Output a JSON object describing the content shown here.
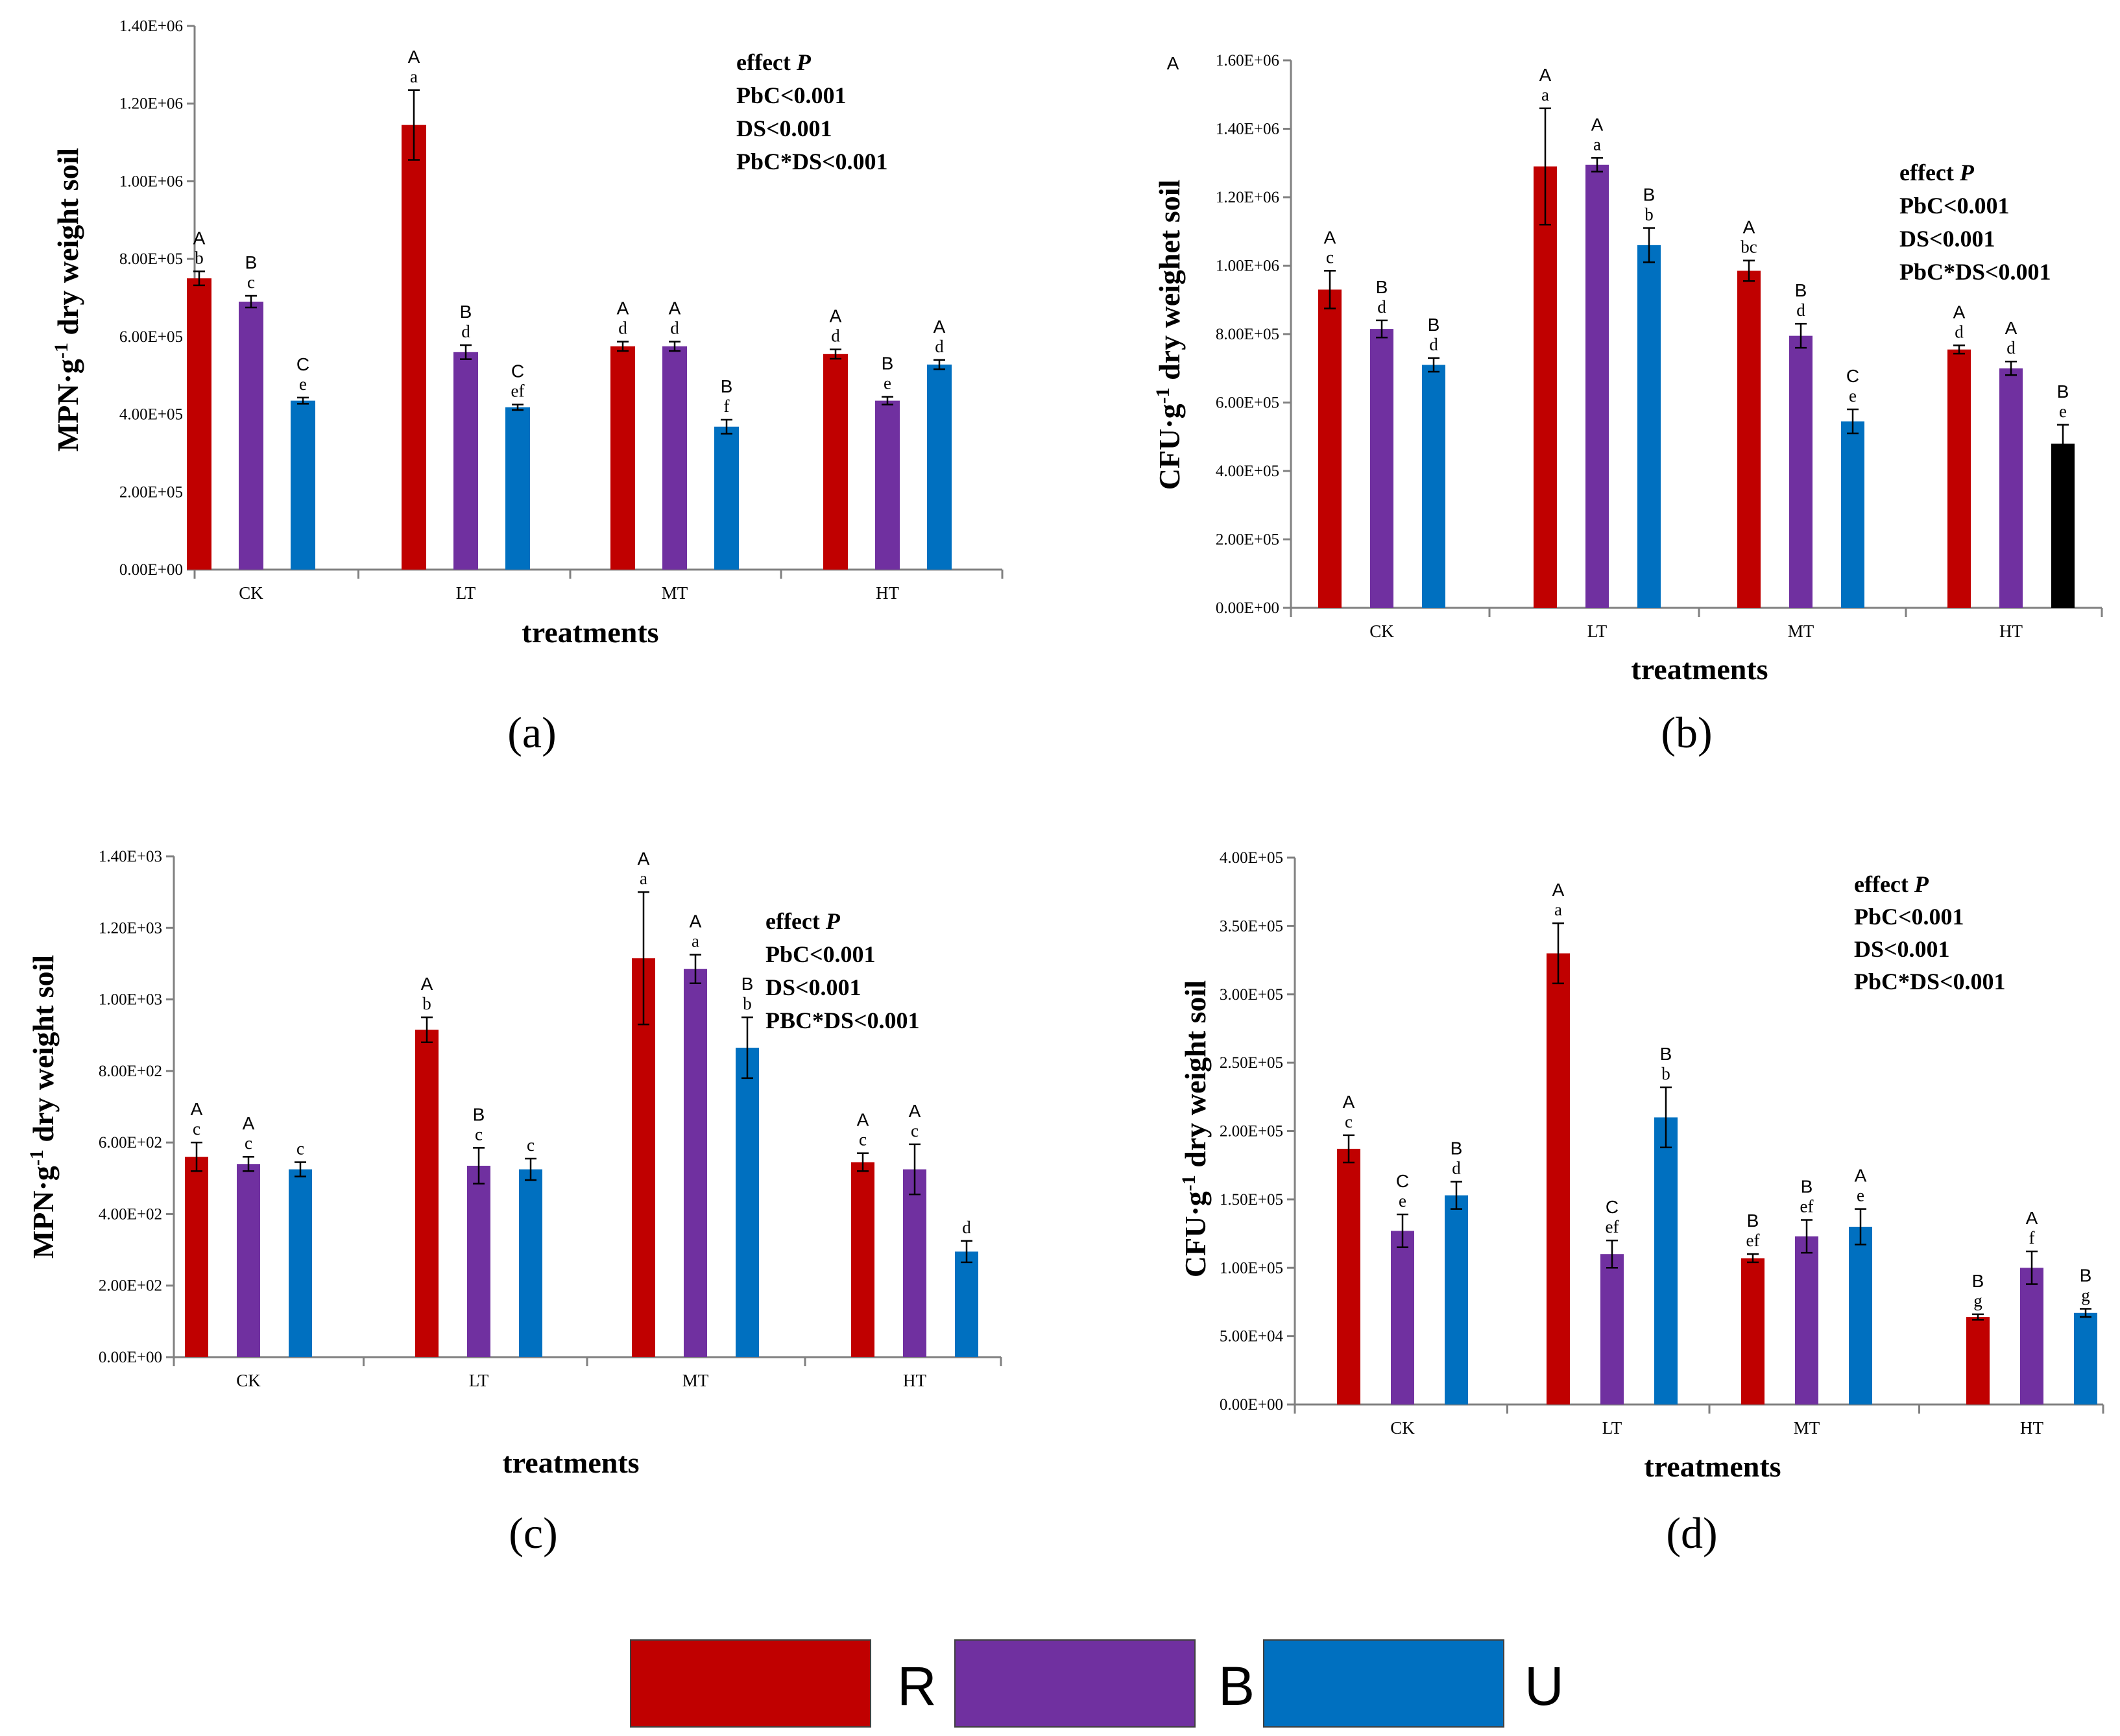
{
  "colors": {
    "R": "#C00000",
    "B": "#7030A0",
    "U": "#0070C0",
    "black": "#000000"
  },
  "legend": [
    {
      "label": "R",
      "color": "#C00000"
    },
    {
      "label": "B",
      "color": "#7030A0"
    },
    {
      "label": "U",
      "color": "#0070C0"
    }
  ],
  "chart_data": [
    {
      "panel": "(a)",
      "type": "bar",
      "xlabel": "treatments",
      "ylabel": "MPN·g-1 dry weight soil",
      "ylabel_main": "MPN·g",
      "ylabel_sup": "-1",
      "ylabel_rest": " dry weight soil",
      "ylim": [
        0,
        1400000
      ],
      "yticks": [
        "0.00E+00",
        "2.00E+05",
        "4.00E+05",
        "6.00E+05",
        "8.00E+05",
        "1.00E+06",
        "1.20E+06",
        "1.40E+06"
      ],
      "categories": [
        "CK",
        "LT",
        "MT",
        "HT"
      ],
      "series": [
        {
          "name": "R",
          "values": [
            750000,
            1145000,
            575000,
            555000
          ],
          "errors": [
            18000,
            90000,
            12000,
            12000
          ],
          "upper": [
            "A",
            "A",
            "A",
            "A"
          ],
          "lower": [
            "b",
            "a",
            "d",
            "d"
          ]
        },
        {
          "name": "B",
          "values": [
            690000,
            560000,
            575000,
            435000
          ],
          "errors": [
            15000,
            18000,
            12000,
            10000
          ],
          "upper": [
            "B",
            "B",
            "A",
            "B"
          ],
          "lower": [
            "c",
            "d",
            "d",
            "e"
          ]
        },
        {
          "name": "U",
          "values": [
            435000,
            418000,
            368000,
            528000
          ],
          "errors": [
            8000,
            7000,
            18000,
            12000
          ],
          "upper": [
            "C",
            "C",
            "B",
            "A"
          ],
          "lower": [
            "e",
            "ef",
            "f",
            "d"
          ]
        }
      ],
      "annotation": {
        "title": "effect ",
        "title_italic": "P",
        "lines": [
          "PbC<0.001",
          "DS<0.001",
          "PbC*DS<0.001"
        ]
      },
      "panel_letter": ""
    },
    {
      "panel": "(b)",
      "type": "bar",
      "xlabel": "treatments",
      "ylabel": "CFU·g-1 dry weighet soil",
      "ylabel_main": "CFU·g",
      "ylabel_sup": "-1",
      "ylabel_rest": " dry weighet soil",
      "ylim": [
        0,
        1600000
      ],
      "yticks": [
        "0.00E+00",
        "2.00E+05",
        "4.00E+05",
        "6.00E+05",
        "8.00E+05",
        "1.00E+06",
        "1.20E+06",
        "1.40E+06",
        "1.60E+06"
      ],
      "categories": [
        "CK",
        "LT",
        "MT",
        "HT"
      ],
      "series": [
        {
          "name": "R",
          "values": [
            930000,
            1290000,
            985000,
            755000
          ],
          "errors": [
            55000,
            170000,
            30000,
            12000
          ],
          "upper": [
            "A",
            "A",
            "A",
            "A"
          ],
          "lower": [
            "c",
            "a",
            "bc",
            "d"
          ]
        },
        {
          "name": "B",
          "values": [
            815000,
            1295000,
            795000,
            700000
          ],
          "errors": [
            25000,
            20000,
            35000,
            20000
          ],
          "upper": [
            "B",
            "A",
            "B",
            "A"
          ],
          "lower": [
            "d",
            "a",
            "d",
            "d"
          ]
        },
        {
          "name": "U",
          "values": [
            710000,
            1060000,
            545000,
            480000
          ],
          "errors": [
            20000,
            50000,
            35000,
            55000
          ],
          "upper": [
            "B",
            "B",
            "C",
            "B"
          ],
          "lower": [
            "d",
            "b",
            "e",
            "e"
          ]
        }
      ],
      "annotation": {
        "title": "effect  ",
        "title_italic": "P",
        "lines": [
          "PbC<0.001",
          "DS<0.001",
          "PbC*DS<0.001"
        ]
      },
      "panel_letter": "A"
    },
    {
      "panel": "(c)",
      "type": "bar",
      "xlabel": "treatments",
      "ylabel": "MPN·g-1 dry weight soil",
      "ylabel_main": "MPN·g",
      "ylabel_sup": "-1",
      "ylabel_rest": " dry weight soil",
      "ylim": [
        0,
        1400
      ],
      "yticks": [
        "0.00E+00",
        "2.00E+02",
        "4.00E+02",
        "6.00E+02",
        "8.00E+02",
        "1.00E+03",
        "1.20E+03",
        "1.40E+03"
      ],
      "categories": [
        "CK",
        "LT",
        "MT",
        "HT"
      ],
      "series": [
        {
          "name": "R",
          "values": [
            560,
            915,
            1115,
            545
          ],
          "errors": [
            40,
            35,
            185,
            25
          ],
          "upper": [
            "A",
            "A",
            "A",
            "A"
          ],
          "lower": [
            "c",
            "b",
            "a",
            "c"
          ]
        },
        {
          "name": "B",
          "values": [
            540,
            535,
            1085,
            525
          ],
          "errors": [
            20,
            50,
            40,
            70
          ],
          "upper": [
            "A",
            "B",
            "A",
            "A"
          ],
          "lower": [
            "c",
            "c",
            "a",
            "c"
          ]
        },
        {
          "name": "U",
          "values": [
            525,
            525,
            865,
            295
          ],
          "errors": [
            20,
            30,
            85,
            30
          ],
          "upper": [
            "",
            "",
            "B",
            ""
          ],
          "lower": [
            "c",
            "c",
            "b",
            "d"
          ]
        }
      ],
      "annotation": {
        "title": "effect ",
        "title_italic": "P",
        "lines": [
          "PbC<0.001",
          "DS<0.001",
          "PBC*DS<0.001"
        ]
      },
      "panel_letter": ""
    },
    {
      "panel": "(d)",
      "type": "bar",
      "xlabel": "treatments",
      "ylabel": "CFU·g-1 dry weight soil",
      "ylabel_main": "CFU·g",
      "ylabel_sup": "-1",
      "ylabel_rest": " dry weight soil",
      "ylim": [
        0,
        400000
      ],
      "yticks": [
        "0.00E+00",
        "5.00E+04",
        "1.00E+05",
        "1.50E+05",
        "2.00E+05",
        "2.50E+05",
        "3.00E+05",
        "3.50E+05",
        "4.00E+05"
      ],
      "categories": [
        "CK",
        "LT",
        "MT",
        "HT"
      ],
      "series": [
        {
          "name": "R",
          "values": [
            187000,
            330000,
            107000,
            64000
          ],
          "errors": [
            10000,
            22000,
            3000,
            2000
          ],
          "upper": [
            "A",
            "A",
            "B",
            "B"
          ],
          "lower": [
            "c",
            "a",
            "ef",
            "g"
          ]
        },
        {
          "name": "B",
          "values": [
            127000,
            110000,
            123000,
            100000
          ],
          "errors": [
            12000,
            10000,
            12000,
            12000
          ],
          "upper": [
            "C",
            "C",
            "B",
            "A"
          ],
          "lower": [
            "e",
            "ef",
            "ef",
            "f"
          ]
        },
        {
          "name": "U",
          "values": [
            153000,
            210000,
            130000,
            67000
          ],
          "errors": [
            10000,
            22000,
            13000,
            3000
          ],
          "upper": [
            "B",
            "B",
            "A",
            "B"
          ],
          "lower": [
            "d",
            "b",
            "e",
            "g"
          ]
        }
      ],
      "annotation": {
        "title": "effect ",
        "title_italic": "P",
        "lines": [
          "PbC<0.001",
          "DS<0.001",
          "PbC*DS<0.001"
        ]
      },
      "panel_letter": ""
    }
  ]
}
